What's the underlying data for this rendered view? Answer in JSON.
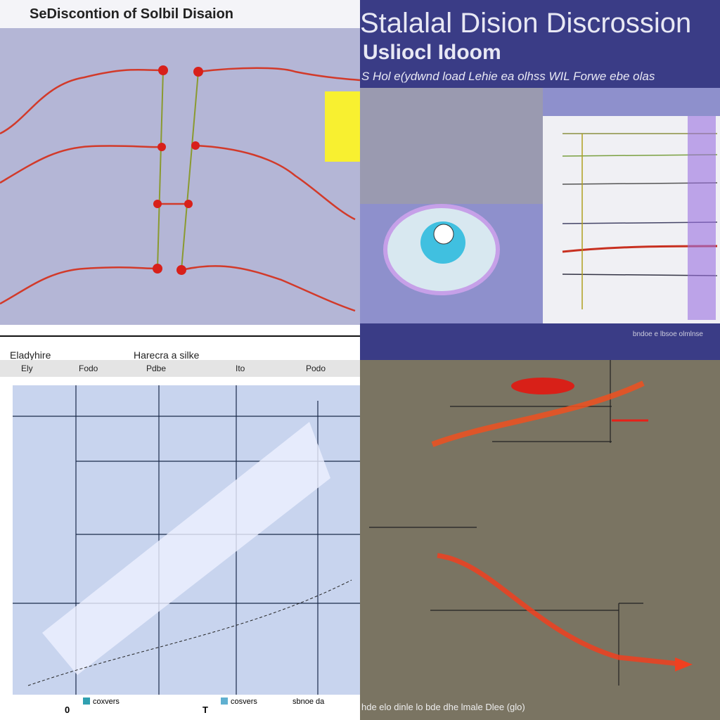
{
  "panels": {
    "top_left": {
      "title": "SeDiscontion of Solbil Disaion"
    },
    "top_right": {
      "title": "Stalalal Dision Discrossion",
      "subtitle": "Usliocl Idoom",
      "caption": "S Hol e(ydwnd load Lehie ea olhss WIL Forwe ebe olas",
      "footer": "bndoe e lbsoe olmlnse"
    },
    "bottom_left": {
      "labels": [
        "Eladyhire",
        "Harecra a silke"
      ],
      "headers": [
        "Ely",
        "Fodo",
        "Pdbe",
        "Ito",
        "Podo"
      ],
      "axis_labels": [
        "0",
        "T"
      ],
      "legend": [
        "coxvers",
        "cosvers",
        "sbnoe da"
      ]
    },
    "bottom_right": {
      "caption": "hde elo dinle lo bde dhe lmale Dlee (glo)"
    }
  }
}
